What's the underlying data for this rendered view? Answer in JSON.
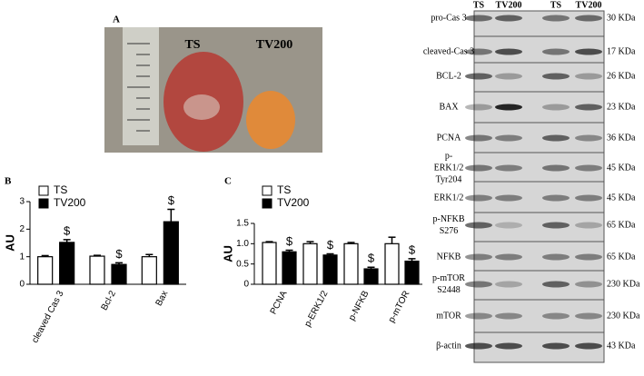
{
  "panels": {
    "a": "A",
    "b": "B",
    "c": "C"
  },
  "photo": {
    "labels": [
      "TS",
      "TV200"
    ]
  },
  "blots": {
    "lanes": [
      "TS",
      "TV200",
      "TS",
      "TV200"
    ],
    "rows": [
      {
        "label": [
          "pro-Cas 3"
        ],
        "size": "30 KDa"
      },
      {
        "label": [
          "cleaved-Cas 3"
        ],
        "size": "17 KDa"
      },
      {
        "label": [
          "BCL-2"
        ],
        "size": "26 KDa"
      },
      {
        "label": [
          "BAX"
        ],
        "size": "23 KDa"
      },
      {
        "label": [
          "PCNA"
        ],
        "size": "36 KDa"
      },
      {
        "label": [
          "p-",
          "ERK1/2",
          "Tyr204"
        ],
        "size": "45 KDa"
      },
      {
        "label": [
          "ERK1/2"
        ],
        "size": "45 KDa"
      },
      {
        "label": [
          "p-NFKB",
          "S276"
        ],
        "size": "65 KDa"
      },
      {
        "label": [
          "NFKB"
        ],
        "size": "65 KDa"
      },
      {
        "label": [
          "p-mTOR",
          "S2448"
        ],
        "size": "230 KDa"
      },
      {
        "label": [
          "mTOR"
        ],
        "size": "230 KDa"
      },
      {
        "label": [
          "β-actin"
        ],
        "size": "43 KDa"
      }
    ]
  },
  "chart_data": [
    {
      "type": "bar",
      "ylabel": "AU",
      "categories": [
        "cleaved Cas 3",
        "Bcl-2",
        "Bax"
      ],
      "series": [
        {
          "name": "TS",
          "color": "#ffffff",
          "values": [
            1.0,
            1.02,
            1.0
          ],
          "errors": [
            0.04,
            0.03,
            0.08
          ]
        },
        {
          "name": "TV200",
          "color": "#000000",
          "values": [
            1.52,
            0.72,
            2.27
          ],
          "errors": [
            0.1,
            0.06,
            0.45
          ],
          "annotations": [
            "$",
            "$",
            "$"
          ]
        }
      ],
      "ylim": [
        0,
        3
      ],
      "yticks": [
        0,
        1,
        2,
        3
      ]
    },
    {
      "type": "bar",
      "ylabel": "AU",
      "categories": [
        "PCNA",
        "p-ERK1/2",
        "p-NFKB",
        "p-mTOR"
      ],
      "series": [
        {
          "name": "TS",
          "color": "#ffffff",
          "values": [
            1.03,
            1.0,
            1.0,
            1.0
          ],
          "errors": [
            0.02,
            0.05,
            0.03,
            0.16
          ]
        },
        {
          "name": "TV200",
          "color": "#000000",
          "values": [
            0.8,
            0.72,
            0.38,
            0.57
          ],
          "errors": [
            0.04,
            0.03,
            0.04,
            0.06
          ],
          "annotations": [
            "$",
            "$",
            "$",
            "$"
          ]
        }
      ],
      "ylim": [
        0,
        1.5
      ],
      "yticks": [
        0,
        0.5,
        {
          "value": 1,
          "label": "1.0"
        },
        1.5
      ]
    }
  ]
}
